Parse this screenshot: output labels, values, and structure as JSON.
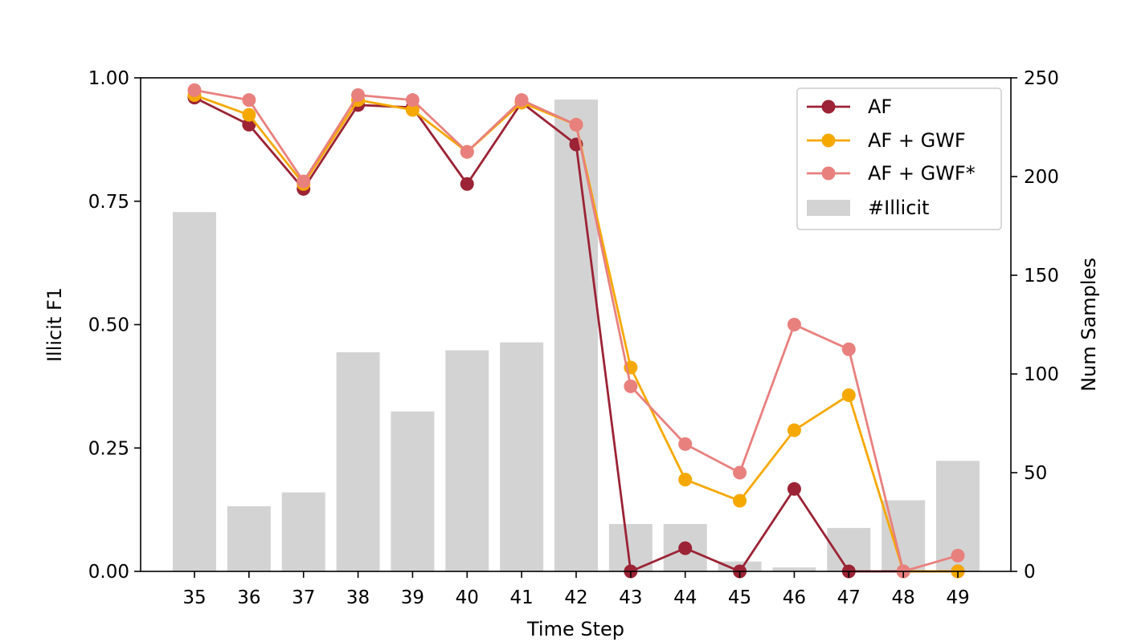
{
  "chart_data": {
    "type": "bar+line",
    "title": "",
    "xlabel": "Time Step",
    "ylabel": "Illicit F1",
    "y2label": "Num Samples",
    "categories": [
      "35",
      "36",
      "37",
      "38",
      "39",
      "40",
      "41",
      "42",
      "43",
      "44",
      "45",
      "46",
      "47",
      "48",
      "49"
    ],
    "ylim": [
      0,
      1
    ],
    "y2lim": [
      0,
      250
    ],
    "yticks": [
      "0.00",
      "0.25",
      "0.50",
      "0.75",
      "1.00"
    ],
    "y2ticks": [
      "0",
      "50",
      "100",
      "150",
      "200",
      "250"
    ],
    "grid": false,
    "legend_position": "top-right",
    "bars": {
      "name": "#Illicit",
      "color": "#d3d3d3",
      "values": [
        182,
        33,
        40,
        111,
        81,
        112,
        116,
        239,
        24,
        24,
        5,
        2,
        22,
        36,
        56
      ]
    },
    "series": [
      {
        "name": "AF",
        "color": "#9b2335",
        "values": [
          0.96,
          0.905,
          0.775,
          0.945,
          0.94,
          0.785,
          0.95,
          0.865,
          0.0,
          0.047,
          0.0,
          0.167,
          0.0,
          0.0,
          0.0
        ]
      },
      {
        "name": "AF + GWF",
        "color": "#f5a800",
        "values": [
          0.965,
          0.925,
          0.785,
          0.955,
          0.935,
          0.85,
          0.95,
          0.905,
          0.413,
          0.186,
          0.143,
          0.286,
          0.357,
          0.0,
          0.0
        ]
      },
      {
        "name": "AF + GWF*",
        "color": "#e8807e",
        "values": [
          0.975,
          0.955,
          0.79,
          0.965,
          0.955,
          0.85,
          0.955,
          0.905,
          0.375,
          0.258,
          0.2,
          0.5,
          0.45,
          0.0,
          0.032
        ]
      }
    ]
  }
}
